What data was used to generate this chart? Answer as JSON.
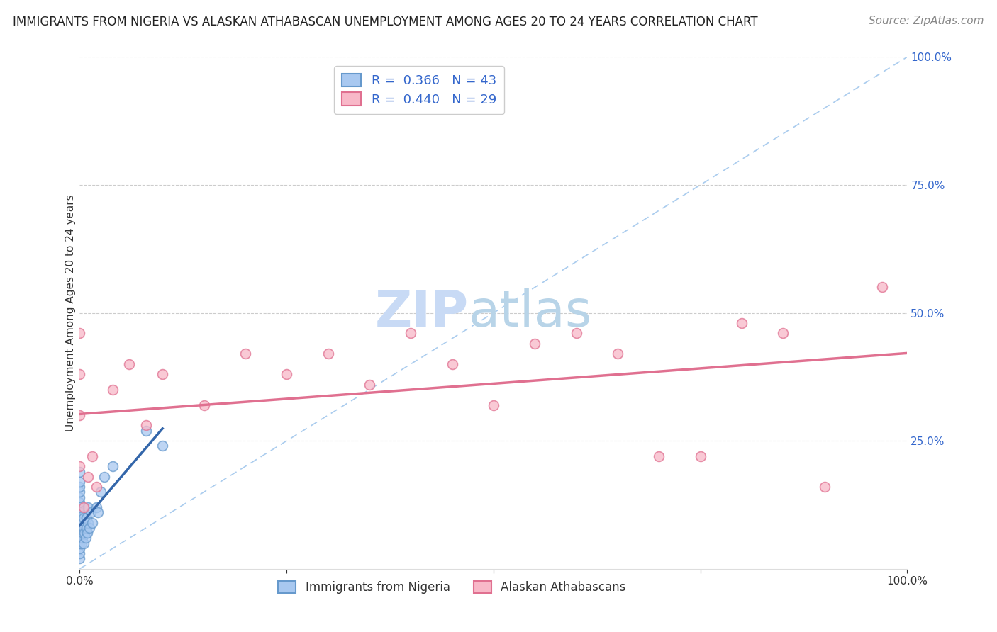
{
  "title": "IMMIGRANTS FROM NIGERIA VS ALASKAN ATHABASCAN UNEMPLOYMENT AMONG AGES 20 TO 24 YEARS CORRELATION CHART",
  "source": "Source: ZipAtlas.com",
  "ylabel": "Unemployment Among Ages 20 to 24 years",
  "xlabel": "",
  "watermark_zip": "ZIP",
  "watermark_atlas": "atlas",
  "xlim": [
    0.0,
    1.0
  ],
  "ylim": [
    0.0,
    1.0
  ],
  "xtick_labels": [
    "0.0%",
    "",
    "",
    "",
    "100.0%"
  ],
  "xtick_vals": [
    0.0,
    0.25,
    0.5,
    0.75,
    1.0
  ],
  "ytick_labels": [
    "25.0%",
    "50.0%",
    "75.0%",
    "100.0%"
  ],
  "ytick_vals": [
    0.25,
    0.5,
    0.75,
    1.0
  ],
  "series1_color": "#a8c8f0",
  "series1_edge": "#6699cc",
  "series1_line_color": "#3366aa",
  "series2_color": "#f8b8c8",
  "series2_edge": "#e07090",
  "series2_line_color": "#e07090",
  "series1_label": "Immigrants from Nigeria",
  "series2_label": "Alaskan Athabascans",
  "series1_R": 0.366,
  "series1_N": 43,
  "series2_R": 0.44,
  "series2_N": 29,
  "legend_color": "#3366cc",
  "series1_x": [
    0.0,
    0.0,
    0.0,
    0.0,
    0.0,
    0.0,
    0.0,
    0.0,
    0.0,
    0.0,
    0.0,
    0.0,
    0.0,
    0.0,
    0.0,
    0.0,
    0.0,
    0.0,
    0.002,
    0.002,
    0.003,
    0.003,
    0.004,
    0.005,
    0.005,
    0.005,
    0.006,
    0.007,
    0.008,
    0.008,
    0.009,
    0.01,
    0.01,
    0.012,
    0.013,
    0.015,
    0.02,
    0.022,
    0.025,
    0.03,
    0.04,
    0.08,
    0.1
  ],
  "series1_y": [
    0.02,
    0.03,
    0.04,
    0.05,
    0.06,
    0.06,
    0.07,
    0.08,
    0.09,
    0.1,
    0.11,
    0.12,
    0.13,
    0.14,
    0.15,
    0.16,
    0.17,
    0.19,
    0.05,
    0.08,
    0.06,
    0.09,
    0.07,
    0.05,
    0.08,
    0.1,
    0.07,
    0.06,
    0.08,
    0.1,
    0.07,
    0.09,
    0.12,
    0.08,
    0.11,
    0.09,
    0.12,
    0.11,
    0.15,
    0.18,
    0.2,
    0.27,
    0.24
  ],
  "series2_x": [
    0.0,
    0.0,
    0.0,
    0.0,
    0.005,
    0.01,
    0.015,
    0.02,
    0.04,
    0.06,
    0.08,
    0.1,
    0.15,
    0.2,
    0.25,
    0.3,
    0.35,
    0.4,
    0.45,
    0.5,
    0.55,
    0.6,
    0.65,
    0.7,
    0.75,
    0.8,
    0.85,
    0.9,
    0.97
  ],
  "series2_y": [
    0.2,
    0.3,
    0.38,
    0.46,
    0.12,
    0.18,
    0.22,
    0.16,
    0.35,
    0.4,
    0.28,
    0.38,
    0.32,
    0.42,
    0.38,
    0.42,
    0.36,
    0.46,
    0.4,
    0.32,
    0.44,
    0.46,
    0.42,
    0.22,
    0.22,
    0.48,
    0.46,
    0.16,
    0.55
  ],
  "background_color": "#ffffff",
  "grid_color": "#cccccc",
  "refline_color": "#aaccee",
  "title_fontsize": 12,
  "axis_label_fontsize": 11,
  "tick_fontsize": 11,
  "legend_fontsize": 13,
  "watermark_fontsize_zip": 52,
  "watermark_fontsize_atlas": 52,
  "watermark_color_zip": "#c8daf5",
  "watermark_color_atlas": "#b8d4e8",
  "source_fontsize": 11,
  "point_size": 100
}
